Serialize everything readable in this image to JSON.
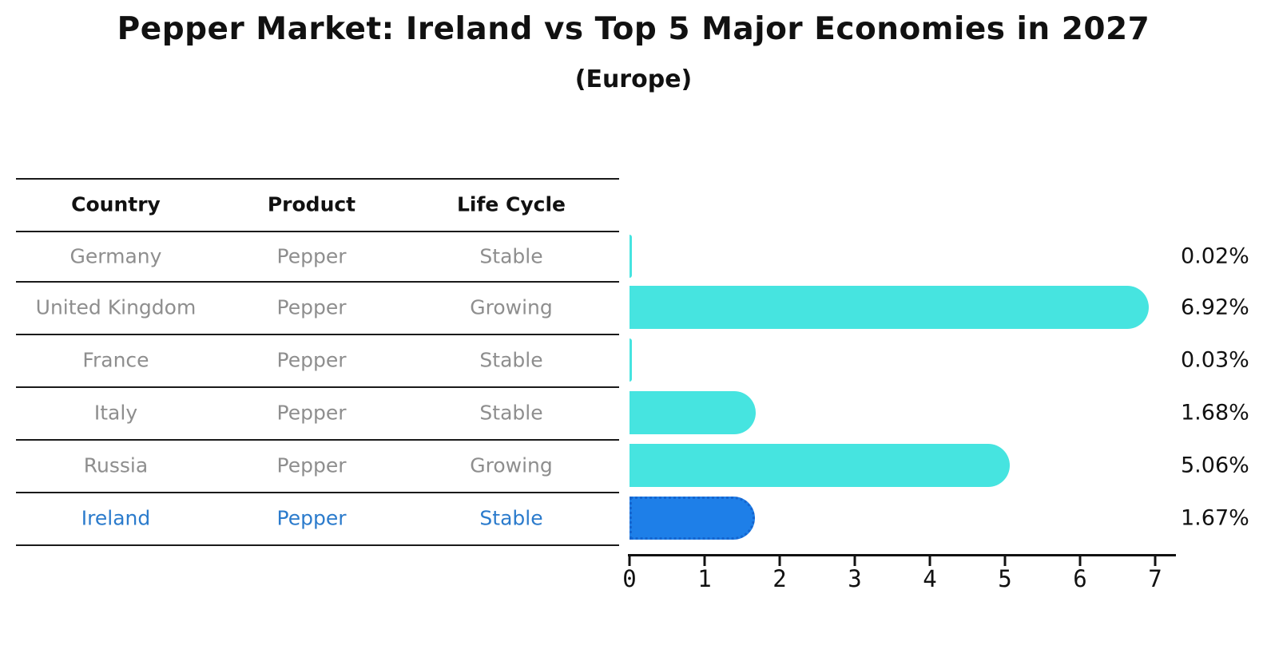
{
  "title": "Pepper Market: Ireland vs Top 5 Major Economies in 2027",
  "subtitle": "(Europe)",
  "table": {
    "headers": [
      "Country",
      "Product",
      "Life Cycle"
    ],
    "rows": [
      {
        "country": "Germany",
        "product": "Pepper",
        "life_cycle": "Stable",
        "highlight": false
      },
      {
        "country": "United Kingdom",
        "product": "Pepper",
        "life_cycle": "Growing",
        "highlight": false
      },
      {
        "country": "France",
        "product": "Pepper",
        "life_cycle": "Stable",
        "highlight": false
      },
      {
        "country": "Italy",
        "product": "Pepper",
        "life_cycle": "Stable",
        "highlight": false
      },
      {
        "country": "Russia",
        "product": "Pepper",
        "life_cycle": "Growing",
        "highlight": false
      },
      {
        "country": "Ireland",
        "product": "Pepper",
        "life_cycle": "Stable",
        "highlight": true
      }
    ]
  },
  "chart_data": {
    "type": "bar",
    "orientation": "horizontal",
    "title": "Pepper Market: Ireland vs Top 5 Major Economies in 2027",
    "subtitle": "(Europe)",
    "categories": [
      "Germany",
      "United Kingdom",
      "France",
      "Italy",
      "Russia",
      "Ireland"
    ],
    "values": [
      0.02,
      6.92,
      0.03,
      1.68,
      5.06,
      1.67
    ],
    "value_labels": [
      "0.02%",
      "6.92%",
      "0.03%",
      "1.68%",
      "5.06%",
      "1.67%"
    ],
    "x_ticks": [
      0,
      1,
      2,
      3,
      4,
      5,
      6,
      7
    ],
    "xlim": [
      0,
      7.3
    ],
    "grid": false,
    "legend": "none",
    "highlight_index": 5
  },
  "colors": {
    "bar_cyan": "#46E4E0",
    "highlight_blue": "#1E7FE8",
    "highlight_border": "#1565CF",
    "highlight_text": "#2B7BCC",
    "text_dark": "#111111",
    "text_muted": "#8E8E8E"
  }
}
